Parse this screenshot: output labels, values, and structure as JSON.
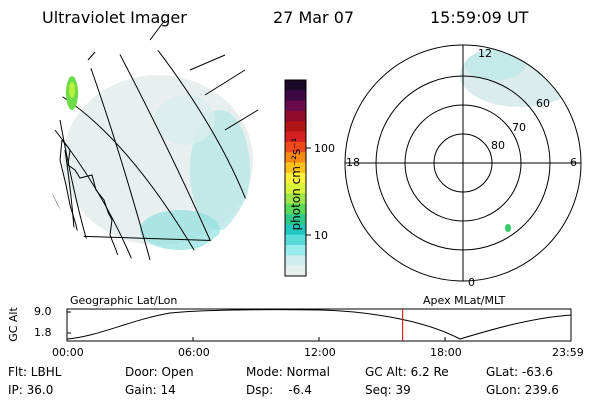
{
  "header": {
    "title": "Ultraviolet Imager",
    "date": "27 Mar 07",
    "time": "15:59:09 UT"
  },
  "colorbar": {
    "label": "photon cm⁻²s⁻¹",
    "ticks": [
      "100",
      "10"
    ],
    "colors": [
      "#1a0a28",
      "#3b0a45",
      "#6a0a4a",
      "#8e0b2e",
      "#b01515",
      "#d42020",
      "#f04a1a",
      "#f88a12",
      "#ffc21a",
      "#fff03a",
      "#d9f23a",
      "#9ee64a",
      "#5ad85a",
      "#2ec88a",
      "#22c8c0",
      "#58dcd8",
      "#9aecec",
      "#cfeded",
      "#e6eeee"
    ]
  },
  "left_panel": {
    "caption": "Geographic Lat/Lon"
  },
  "right_panel": {
    "caption": "Apex MLat/MLT",
    "mlt_labels": {
      "top": "12",
      "bottom": "0",
      "left": "18",
      "right": "6"
    },
    "mlat_labels": [
      "60",
      "70",
      "80"
    ]
  },
  "altitude_plot": {
    "ylabel": "GC Alt",
    "yticks": [
      "9.0",
      "1.8"
    ],
    "xticks": [
      "00:00",
      "06:00",
      "12:00",
      "18:00",
      "23:59"
    ],
    "marker_time": "15:59",
    "marker_color": "#cc0000"
  },
  "info": {
    "flt": "Flt: LBHL",
    "ip": "IP: 36.0",
    "door": "Door: Open",
    "gain": "Gain: 14",
    "mode": "Mode: Normal",
    "dsp": "Dsp:    -6.4",
    "gcalt": "GC Alt: 6.2 Re",
    "seq": "Seq: 39",
    "glat": "GLat: -63.6",
    "glon": "GLon: 239.6"
  }
}
